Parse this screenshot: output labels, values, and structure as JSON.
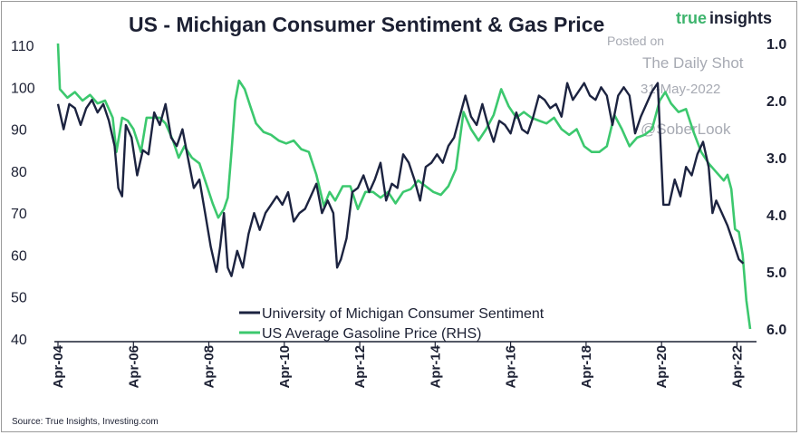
{
  "chart_data": {
    "type": "line",
    "title": "US - Michigan Consumer Sentiment & Gas Price",
    "brand": {
      "part1": "true",
      "part2": "insights"
    },
    "watermark": {
      "line1": "Posted on",
      "line2": "The Daily Shot",
      "line3": "31-May-2022",
      "line4": "@SoberLook"
    },
    "source": "Source: True Insights, Investing.com",
    "left_axis": {
      "min": 40,
      "max": 110,
      "ticks": [
        "110",
        "100",
        "90",
        "80",
        "70",
        "60",
        "50",
        "40"
      ]
    },
    "right_axis": {
      "min": 1.0,
      "max": 6.0,
      "inverted": true,
      "ticks": [
        "1.0",
        "2.0",
        "3.0",
        "4.0",
        "5.0",
        "6.0"
      ]
    },
    "x_ticks": [
      "Apr-04",
      "Apr-06",
      "Apr-08",
      "Apr-10",
      "Apr-12",
      "Apr-14",
      "Apr-16",
      "Apr-18",
      "Apr-20",
      "Apr-22"
    ],
    "x_range": [
      2004.25,
      2022.6
    ],
    "colors": {
      "sentiment": "#1c2340",
      "gas": "#3cc86e",
      "text": "#1c2033"
    },
    "series": [
      {
        "name": "University of Michigan Consumer Sentiment",
        "axis": "left",
        "points": [
          [
            2004.25,
            96
          ],
          [
            2004.4,
            90
          ],
          [
            2004.55,
            96
          ],
          [
            2004.7,
            95
          ],
          [
            2004.85,
            91
          ],
          [
            2005.0,
            95
          ],
          [
            2005.15,
            97
          ],
          [
            2005.3,
            94
          ],
          [
            2005.45,
            96
          ],
          [
            2005.6,
            92
          ],
          [
            2005.75,
            86
          ],
          [
            2005.85,
            76
          ],
          [
            2005.95,
            74
          ],
          [
            2006.05,
            91
          ],
          [
            2006.2,
            88
          ],
          [
            2006.35,
            79
          ],
          [
            2006.5,
            85
          ],
          [
            2006.65,
            84
          ],
          [
            2006.8,
            94
          ],
          [
            2006.95,
            91
          ],
          [
            2007.1,
            96
          ],
          [
            2007.25,
            88
          ],
          [
            2007.4,
            86
          ],
          [
            2007.55,
            90
          ],
          [
            2007.7,
            83
          ],
          [
            2007.85,
            76
          ],
          [
            2008.0,
            78
          ],
          [
            2008.15,
            70
          ],
          [
            2008.3,
            62
          ],
          [
            2008.45,
            56
          ],
          [
            2008.55,
            62
          ],
          [
            2008.65,
            70
          ],
          [
            2008.75,
            57
          ],
          [
            2008.85,
            55
          ],
          [
            2009.0,
            61
          ],
          [
            2009.15,
            57
          ],
          [
            2009.3,
            65
          ],
          [
            2009.45,
            70
          ],
          [
            2009.6,
            66
          ],
          [
            2009.75,
            70
          ],
          [
            2009.9,
            72
          ],
          [
            2010.05,
            74
          ],
          [
            2010.2,
            72
          ],
          [
            2010.35,
            75
          ],
          [
            2010.5,
            68
          ],
          [
            2010.65,
            70
          ],
          [
            2010.8,
            71
          ],
          [
            2010.95,
            74
          ],
          [
            2011.1,
            77
          ],
          [
            2011.25,
            70
          ],
          [
            2011.4,
            73
          ],
          [
            2011.55,
            70
          ],
          [
            2011.65,
            57
          ],
          [
            2011.75,
            59
          ],
          [
            2011.9,
            64
          ],
          [
            2012.05,
            75
          ],
          [
            2012.2,
            76
          ],
          [
            2012.35,
            79
          ],
          [
            2012.5,
            75
          ],
          [
            2012.65,
            78
          ],
          [
            2012.8,
            82
          ],
          [
            2012.95,
            73
          ],
          [
            2013.1,
            77
          ],
          [
            2013.25,
            76
          ],
          [
            2013.4,
            84
          ],
          [
            2013.55,
            82
          ],
          [
            2013.7,
            78
          ],
          [
            2013.85,
            73
          ],
          [
            2014.0,
            81
          ],
          [
            2014.15,
            82
          ],
          [
            2014.3,
            84
          ],
          [
            2014.45,
            82
          ],
          [
            2014.6,
            86
          ],
          [
            2014.75,
            88
          ],
          [
            2014.9,
            93
          ],
          [
            2015.05,
            98
          ],
          [
            2015.2,
            93
          ],
          [
            2015.35,
            91
          ],
          [
            2015.5,
            96
          ],
          [
            2015.65,
            91
          ],
          [
            2015.8,
            87
          ],
          [
            2015.95,
            92
          ],
          [
            2016.1,
            91
          ],
          [
            2016.25,
            89
          ],
          [
            2016.4,
            94
          ],
          [
            2016.55,
            90
          ],
          [
            2016.7,
            89
          ],
          [
            2016.85,
            93
          ],
          [
            2017.0,
            98
          ],
          [
            2017.15,
            97
          ],
          [
            2017.3,
            95
          ],
          [
            2017.45,
            96
          ],
          [
            2017.6,
            93
          ],
          [
            2017.75,
            101
          ],
          [
            2017.9,
            97
          ],
          [
            2018.05,
            99
          ],
          [
            2018.2,
            101
          ],
          [
            2018.35,
            98
          ],
          [
            2018.5,
            97
          ],
          [
            2018.65,
            100
          ],
          [
            2018.8,
            98
          ],
          [
            2018.95,
            91
          ],
          [
            2019.1,
            98
          ],
          [
            2019.25,
            100
          ],
          [
            2019.4,
            98
          ],
          [
            2019.55,
            89
          ],
          [
            2019.7,
            93
          ],
          [
            2019.85,
            96
          ],
          [
            2020.0,
            99
          ],
          [
            2020.15,
            101
          ],
          [
            2020.3,
            72
          ],
          [
            2020.45,
            72
          ],
          [
            2020.6,
            78
          ],
          [
            2020.75,
            74
          ],
          [
            2020.9,
            81
          ],
          [
            2021.05,
            79
          ],
          [
            2021.2,
            84
          ],
          [
            2021.35,
            87
          ],
          [
            2021.5,
            81
          ],
          [
            2021.6,
            70
          ],
          [
            2021.7,
            73
          ],
          [
            2021.85,
            70
          ],
          [
            2022.0,
            67
          ],
          [
            2022.15,
            63
          ],
          [
            2022.3,
            59
          ],
          [
            2022.42,
            58
          ]
        ]
      },
      {
        "name": "US Average Gasoline Price (RHS)",
        "axis": "right",
        "points": [
          [
            2004.25,
            1.0
          ],
          [
            2004.3,
            1.8
          ],
          [
            2004.5,
            1.95
          ],
          [
            2004.7,
            1.85
          ],
          [
            2004.9,
            2.0
          ],
          [
            2005.1,
            1.9
          ],
          [
            2005.3,
            2.05
          ],
          [
            2005.5,
            2.0
          ],
          [
            2005.7,
            2.3
          ],
          [
            2005.8,
            2.9
          ],
          [
            2005.95,
            2.3
          ],
          [
            2006.1,
            2.35
          ],
          [
            2006.25,
            2.5
          ],
          [
            2006.45,
            2.9
          ],
          [
            2006.6,
            2.3
          ],
          [
            2006.75,
            2.3
          ],
          [
            2006.95,
            2.3
          ],
          [
            2007.1,
            2.4
          ],
          [
            2007.3,
            2.7
          ],
          [
            2007.45,
            3.0
          ],
          [
            2007.6,
            2.8
          ],
          [
            2007.8,
            3.0
          ],
          [
            2008.0,
            3.1
          ],
          [
            2008.2,
            3.5
          ],
          [
            2008.35,
            3.8
          ],
          [
            2008.5,
            4.05
          ],
          [
            2008.65,
            3.9
          ],
          [
            2008.75,
            3.7
          ],
          [
            2008.85,
            2.9
          ],
          [
            2008.95,
            2.0
          ],
          [
            2009.05,
            1.65
          ],
          [
            2009.2,
            1.8
          ],
          [
            2009.35,
            2.1
          ],
          [
            2009.5,
            2.4
          ],
          [
            2009.7,
            2.55
          ],
          [
            2009.9,
            2.6
          ],
          [
            2010.1,
            2.7
          ],
          [
            2010.3,
            2.75
          ],
          [
            2010.5,
            2.7
          ],
          [
            2010.7,
            2.85
          ],
          [
            2010.9,
            2.9
          ],
          [
            2011.1,
            3.3
          ],
          [
            2011.3,
            3.85
          ],
          [
            2011.45,
            3.6
          ],
          [
            2011.6,
            3.75
          ],
          [
            2011.8,
            3.5
          ],
          [
            2012.0,
            3.5
          ],
          [
            2012.2,
            3.9
          ],
          [
            2012.4,
            3.6
          ],
          [
            2012.6,
            3.6
          ],
          [
            2012.8,
            3.7
          ],
          [
            2013.0,
            3.6
          ],
          [
            2013.2,
            3.8
          ],
          [
            2013.4,
            3.6
          ],
          [
            2013.6,
            3.55
          ],
          [
            2013.8,
            3.4
          ],
          [
            2014.0,
            3.5
          ],
          [
            2014.2,
            3.6
          ],
          [
            2014.4,
            3.65
          ],
          [
            2014.6,
            3.5
          ],
          [
            2014.8,
            3.2
          ],
          [
            2015.0,
            2.2
          ],
          [
            2015.2,
            2.5
          ],
          [
            2015.4,
            2.7
          ],
          [
            2015.6,
            2.5
          ],
          [
            2015.8,
            2.25
          ],
          [
            2016.0,
            1.8
          ],
          [
            2016.2,
            2.1
          ],
          [
            2016.4,
            2.3
          ],
          [
            2016.6,
            2.2
          ],
          [
            2016.8,
            2.3
          ],
          [
            2017.0,
            2.35
          ],
          [
            2017.2,
            2.4
          ],
          [
            2017.4,
            2.3
          ],
          [
            2017.6,
            2.5
          ],
          [
            2017.8,
            2.6
          ],
          [
            2018.0,
            2.5
          ],
          [
            2018.2,
            2.8
          ],
          [
            2018.4,
            2.9
          ],
          [
            2018.6,
            2.9
          ],
          [
            2018.8,
            2.8
          ],
          [
            2019.0,
            2.25
          ],
          [
            2019.2,
            2.5
          ],
          [
            2019.4,
            2.8
          ],
          [
            2019.6,
            2.65
          ],
          [
            2019.8,
            2.6
          ],
          [
            2020.0,
            2.5
          ],
          [
            2020.2,
            2.0
          ],
          [
            2020.35,
            1.85
          ],
          [
            2020.5,
            2.05
          ],
          [
            2020.7,
            2.2
          ],
          [
            2020.9,
            2.15
          ],
          [
            2021.1,
            2.55
          ],
          [
            2021.3,
            2.9
          ],
          [
            2021.5,
            3.1
          ],
          [
            2021.7,
            3.25
          ],
          [
            2021.9,
            3.4
          ],
          [
            2022.0,
            3.3
          ],
          [
            2022.1,
            3.55
          ],
          [
            2022.2,
            4.25
          ],
          [
            2022.3,
            4.3
          ],
          [
            2022.4,
            4.7
          ],
          [
            2022.5,
            5.5
          ],
          [
            2022.6,
            6.0
          ]
        ]
      }
    ]
  }
}
